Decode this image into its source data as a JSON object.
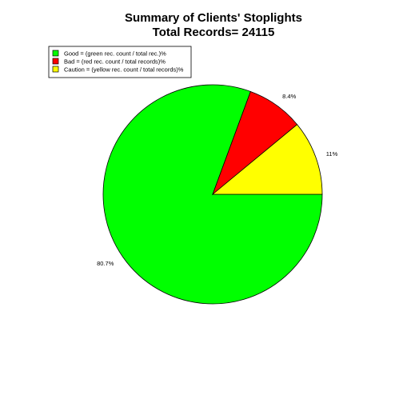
{
  "chart_data": {
    "type": "pie",
    "title": "Summary of Clients' Stoplights",
    "subtitle": "Total Records= 24115",
    "start_angle_deg": 0,
    "direction": "clockwise",
    "slices": [
      {
        "label": "80.7%",
        "value": 80.7,
        "color": "#00ff00"
      },
      {
        "label": "8.4%",
        "value": 8.4,
        "color": "#ff0000"
      },
      {
        "label": "11%",
        "value": 11.0,
        "color": "#ffff00"
      }
    ],
    "legend": {
      "position": "top-left",
      "entries": [
        {
          "text": "Good = (green rec. count / total rec.)%",
          "color": "#00ff00"
        },
        {
          "text": "Bad = (red rec. count / total records)%",
          "color": "#ff0000"
        },
        {
          "text": "Caution = (yellow rec. count / total records)%",
          "color": "#ffff00"
        }
      ]
    }
  }
}
